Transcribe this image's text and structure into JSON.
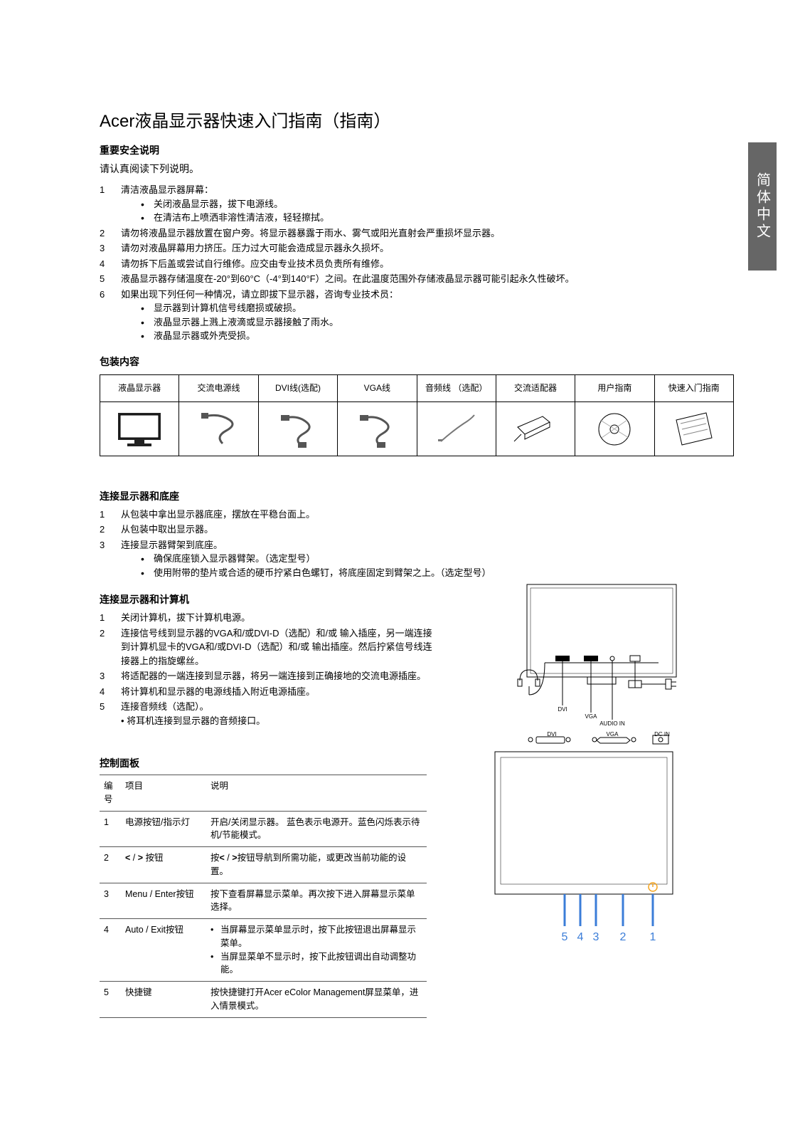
{
  "sideTab": "简体中文",
  "title": "Acer液晶显示器快速入门指南（指南）",
  "safety": {
    "heading": "重要安全说明",
    "intro": "请认真阅读下列说明。",
    "items": [
      {
        "n": "1",
        "text": "清洁液晶显示器屏幕：",
        "bullets": [
          "关闭液晶显示器，拔下电源线。",
          "在清洁布上喷洒非溶性清洁液，轻轻擦拭。"
        ]
      },
      {
        "n": "2",
        "text": "请勿将液晶显示器放置在窗户旁。将显示器暴露于雨水、雾气或阳光直射会严重损坏显示器。"
      },
      {
        "n": "3",
        "text": "请勿对液晶屏幕用力挤压。压力过大可能会造成显示器永久损坏。"
      },
      {
        "n": "4",
        "text": "请勿拆下后盖或尝试自行维修。应交由专业技术员负责所有维修。"
      },
      {
        "n": "5",
        "text": "液晶显示器存储温度在-20°到60°C（-4°到140°F）之间。在此温度范围外存储液晶显示器可能引起永久性破坏。"
      },
      {
        "n": "6",
        "text": "如果出现下列任何一种情况，请立即拔下显示器，咨询专业技术员：",
        "bullets": [
          "显示器到计算机信号线磨损或破损。",
          "液晶显示器上溅上液滴或显示器接触了雨水。",
          "液晶显示器或外壳受损。"
        ]
      }
    ]
  },
  "package": {
    "heading": "包装内容",
    "cols": [
      "液晶显示器",
      "交流电源线",
      "DVI线(选配)",
      "VGA线",
      "音频线\n（选配）",
      "交流适配器",
      "用户指南",
      "快速入门指南"
    ]
  },
  "base": {
    "heading": "连接显示器和底座",
    "items": [
      {
        "n": "1",
        "text": "从包装中拿出显示器底座，摆放在平稳台面上。"
      },
      {
        "n": "2",
        "text": "从包装中取出显示器。"
      },
      {
        "n": "3",
        "text": "连接显示器臂架到底座。",
        "bullets": [
          "确保底座锁入显示器臂架。（选定型号）",
          "使用附带的垫片或合适的硬币拧紧白色螺钉，将底座固定到臂架之上。（选定型号）"
        ]
      }
    ]
  },
  "connect": {
    "heading": "连接显示器和计算机",
    "items": [
      {
        "n": "1",
        "text": "关闭计算机，拔下计算机电源。"
      },
      {
        "n": "2",
        "text": "连接信号线到显示器的VGA和/或DVI-D（选配）和/或 输入插座，另一端连接到计算机显卡的VGA和/或DVI-D（选配）和/或 输出插座。然后拧紧信号线连接器上的指旋螺丝。"
      },
      {
        "n": "3",
        "text": "将适配器的一端连接到显示器，将另一端连接到正确接地的交流电源插座。"
      },
      {
        "n": "4",
        "text": "将计算机和显示器的电源线插入附近电源插座。"
      },
      {
        "n": "5",
        "text": "连接音频线（选配）。",
        "sub": "• 将耳机连接到显示器的音频接口。"
      }
    ]
  },
  "panel": {
    "heading": "控制面板",
    "th": {
      "num": "编号",
      "item": "项目",
      "desc": "说明"
    },
    "rows": [
      {
        "n": "1",
        "item": "电源按钮/指示灯",
        "desc": "开启/关闭显示器。 蓝色表示电源开。蓝色闪烁表示待机/节能模式。"
      },
      {
        "n": "2",
        "itemHtml": "< / > 按钮",
        "desc": "按< / >按钮导航到所需功能，或更改当前功能的设置。"
      },
      {
        "n": "3",
        "item": "Menu / Enter按钮",
        "desc": "按下查看屏幕显示菜单。再次按下进入屏幕显示菜单选择。"
      },
      {
        "n": "4",
        "item": "Auto / Exit按钮",
        "bullets": [
          "当屏幕显示菜单显示时，按下此按钮退出屏幕显示菜单。",
          "当屏显菜单不显示时，按下此按钮调出自动调整功能。"
        ]
      },
      {
        "n": "5",
        "item": "快捷键",
        "desc": "按快捷键打开Acer eColor Management屏显菜单，进入情景模式。"
      }
    ],
    "buttonLabels": [
      "5",
      "4",
      "3",
      "2",
      "1"
    ]
  },
  "connDiagram": {
    "labels": {
      "dvi": "DVI",
      "vga": "VGA",
      "audio": "AUDIO IN",
      "dcin": "DC IN"
    }
  }
}
